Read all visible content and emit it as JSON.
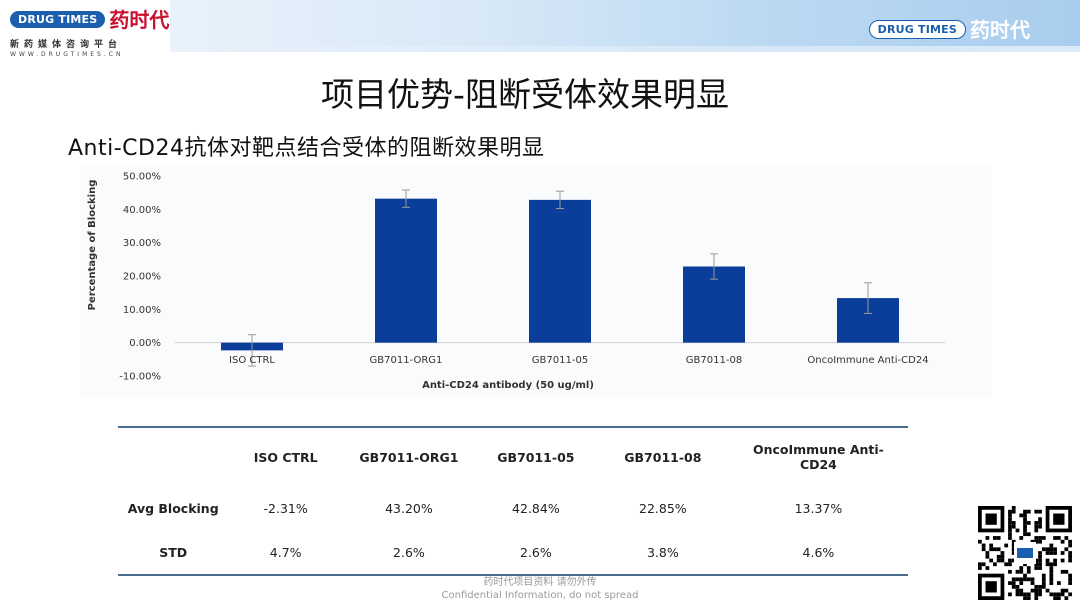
{
  "brand": {
    "pill_text": "DRUG TIMES",
    "cn_name": "药时代",
    "tagline": "新药媒体咨询平台",
    "url": "WWW.DRUGTIMES.CN"
  },
  "slide": {
    "title": "项目优势-阻断受体效果明显",
    "subtitle": "Anti-CD24抗体对靶点结合受体的阻断效果明显"
  },
  "chart_data": {
    "type": "bar",
    "categories": [
      "ISO CTRL",
      "GB7011-ORG1",
      "GB7011-05",
      "GB7011-08",
      "OncoImmune Anti-CD24"
    ],
    "series": [
      {
        "values": [
          -2.31,
          43.2,
          42.84,
          22.85,
          13.37
        ],
        "errors": [
          4.7,
          2.6,
          2.6,
          3.8,
          4.6
        ]
      }
    ],
    "xlabel": "Anti-CD24 antibody (50 ug/ml)",
    "ylabel": "Percentage of Blocking",
    "ylim": [
      -10,
      50
    ],
    "yticks": [
      "-10.00%",
      "0.00%",
      "10.00%",
      "20.00%",
      "30.00%",
      "40.00%",
      "50.00%"
    ],
    "grid": false,
    "bar_color": "#0b3d9a"
  },
  "table": {
    "headers": [
      "",
      "ISO CTRL",
      "GB7011-ORG1",
      "GB7011-05",
      "GB7011-08",
      "OncoImmune Anti-CD24"
    ],
    "rows": [
      {
        "label": "Avg Blocking",
        "cells": [
          "-2.31%",
          "43.20%",
          "42.84%",
          "22.85%",
          "13.37%"
        ]
      },
      {
        "label": "STD",
        "cells": [
          "4.7%",
          "2.6%",
          "2.6%",
          "3.8%",
          "4.6%"
        ]
      }
    ]
  },
  "watermark": {
    "line1": "药时代项目资料 请勿外传",
    "line2": "Confidential Information, do not spread"
  },
  "colors": {
    "accent": "#1b5fae",
    "brand_red": "#c8102e",
    "rule": "#4a6c8f"
  }
}
